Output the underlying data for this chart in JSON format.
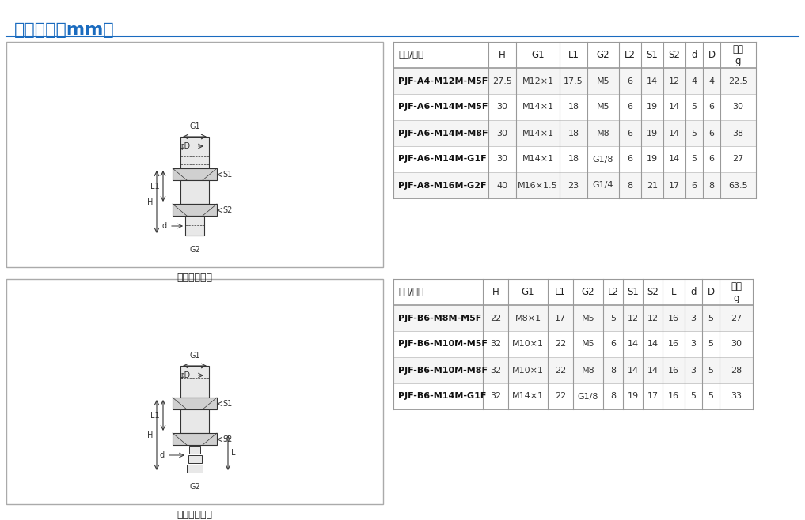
{
  "title": "尺寸规格（mm）",
  "title_color": "#1a6bbf",
  "title_fontsize": 16,
  "bg_color": "#ffffff",
  "table1_header": [
    "型号/尺寸",
    "H",
    "G1",
    "L1",
    "G2",
    "L2",
    "S1",
    "S2",
    "d",
    "D",
    "单重\ng"
  ],
  "table1_rows": [
    [
      "PJF-A4-M12M-M5F",
      "27.5",
      "M12×1",
      "17.5",
      "M5",
      "6",
      "14",
      "12",
      "4",
      "4",
      "22.5"
    ],
    [
      "PJF-A6-M14M-M5F",
      "30",
      "M14×1",
      "18",
      "M5",
      "6",
      "19",
      "14",
      "5",
      "6",
      "30"
    ],
    [
      "PJF-A6-M14M-M8F",
      "30",
      "M14×1",
      "18",
      "M8",
      "6",
      "19",
      "14",
      "5",
      "6",
      "38"
    ],
    [
      "PJF-A6-M14M-G1F",
      "30",
      "M14×1",
      "18",
      "G1/8",
      "6",
      "19",
      "14",
      "5",
      "6",
      "27"
    ],
    [
      "PJF-A8-M16M-G2F",
      "40",
      "M16×1.5",
      "23",
      "G1/4",
      "8",
      "21",
      "17",
      "6",
      "8",
      "63.5"
    ]
  ],
  "table2_header": [
    "型号/尺寸",
    "H",
    "G1",
    "L1",
    "G2",
    "L2",
    "S1",
    "S2",
    "L",
    "d",
    "D",
    "单重\ng"
  ],
  "table2_rows": [
    [
      "PJF-B6-M8M-M5F",
      "22",
      "M8×1",
      "17",
      "M5",
      "5",
      "12",
      "12",
      "16",
      "3",
      "5",
      "27"
    ],
    [
      "PJF-B6-M10M-M5F",
      "32",
      "M10×1",
      "22",
      "M5",
      "6",
      "14",
      "14",
      "16",
      "3",
      "5",
      "30"
    ],
    [
      "PJF-B6-M10M-M8F",
      "32",
      "M10×1",
      "22",
      "M8",
      "8",
      "14",
      "14",
      "16",
      "3",
      "5",
      "28"
    ],
    [
      "PJF-B6-M14M-G1F",
      "32",
      "M14×1",
      "22",
      "G1/8",
      "8",
      "19",
      "17",
      "16",
      "5",
      "5",
      "33"
    ]
  ],
  "label1": "垂直快插接头",
  "label2": "垂直宝塔接头",
  "line_color": "#1a6bbf",
  "header_bg": "#ffffff",
  "row_alt_bg": "#f0f0f0",
  "row_normal_bg": "#ffffff",
  "border_color": "#cccccc",
  "text_color": "#222222",
  "bold_col_color": "#111111"
}
